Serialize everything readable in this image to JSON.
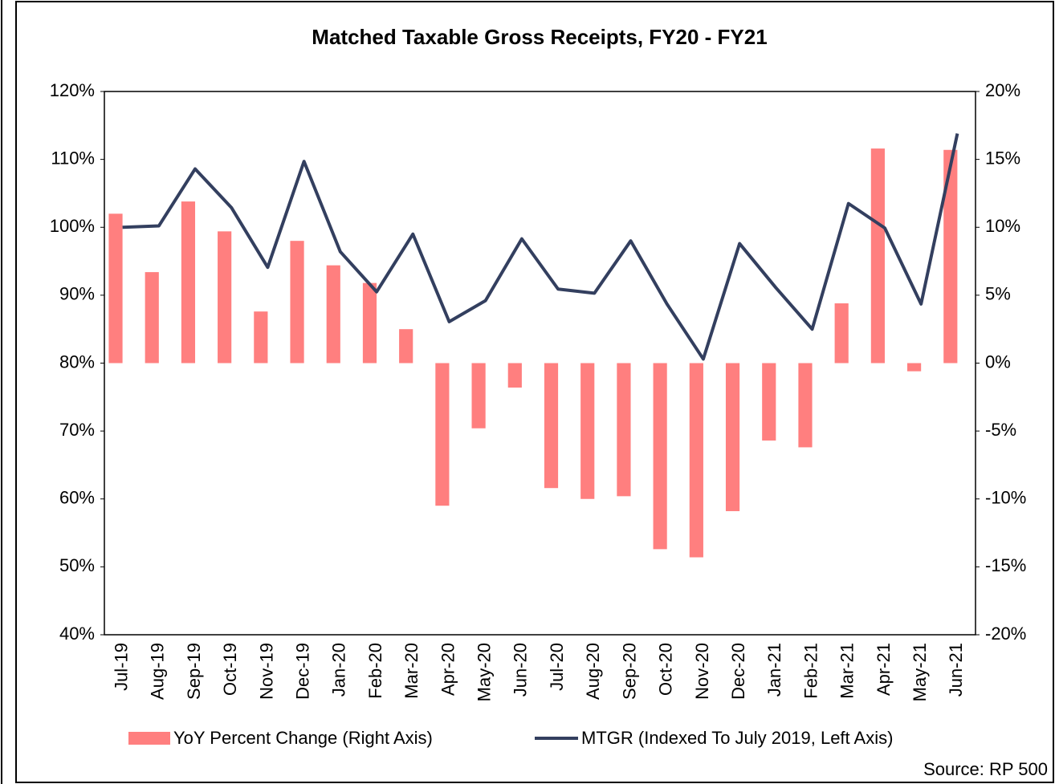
{
  "chart_data": {
    "type": "bar-line",
    "title": "Matched Taxable Gross Receipts, FY20 - FY21",
    "source": "Source: RP 500",
    "categories": [
      "Jul-19",
      "Aug-19",
      "Sep-19",
      "Oct-19",
      "Nov-19",
      "Dec-19",
      "Jan-20",
      "Feb-20",
      "Mar-20",
      "Apr-20",
      "May-20",
      "Jun-20",
      "Jul-20",
      "Aug-20",
      "Sep-20",
      "Oct-20",
      "Nov-20",
      "Dec-20",
      "Jan-21",
      "Feb-21",
      "Mar-21",
      "Apr-21",
      "May-21",
      "Jun-21"
    ],
    "series": [
      {
        "name": "YoY Percent Change (Right Axis)",
        "type": "bar",
        "axis": "y2",
        "color": "#ff7f7f",
        "values": [
          11.0,
          6.7,
          11.9,
          9.7,
          3.8,
          9.0,
          7.2,
          5.9,
          2.5,
          -10.5,
          -4.8,
          -1.8,
          -9.2,
          -10.0,
          -9.8,
          -13.7,
          -14.3,
          -10.9,
          -5.7,
          -6.2,
          4.4,
          15.8,
          -0.6,
          15.7
        ]
      },
      {
        "name": "MTGR (Indexed To July 2019, Left Axis)",
        "type": "line",
        "axis": "y",
        "color": "#333f5f",
        "values": [
          100.0,
          100.2,
          108.6,
          102.9,
          94.1,
          109.7,
          96.4,
          90.5,
          99.0,
          86.1,
          89.2,
          98.3,
          90.9,
          90.3,
          98.0,
          88.7,
          80.6,
          97.6,
          91.1,
          85.0,
          103.5,
          99.9,
          88.7,
          113.8
        ]
      }
    ],
    "ylim": [
      40,
      120
    ],
    "yticks": [
      {
        "value": 40,
        "label": "40%"
      },
      {
        "value": 50,
        "label": "50%"
      },
      {
        "value": 60,
        "label": "60%"
      },
      {
        "value": 70,
        "label": "70%"
      },
      {
        "value": 80,
        "label": "80%"
      },
      {
        "value": 90,
        "label": "90%"
      },
      {
        "value": 100,
        "label": "100%"
      },
      {
        "value": 110,
        "label": "110%"
      },
      {
        "value": 120,
        "label": "120%"
      }
    ],
    "y2lim": [
      -20,
      20
    ],
    "y2ticks": [
      {
        "value": -20,
        "label": "-20%"
      },
      {
        "value": -15,
        "label": "-15%"
      },
      {
        "value": -10,
        "label": "-10%"
      },
      {
        "value": -5,
        "label": "-5%"
      },
      {
        "value": 0,
        "label": "0%"
      },
      {
        "value": 5,
        "label": "5%"
      },
      {
        "value": 10,
        "label": "10%"
      },
      {
        "value": 15,
        "label": "15%"
      },
      {
        "value": 20,
        "label": "20%"
      }
    ]
  }
}
